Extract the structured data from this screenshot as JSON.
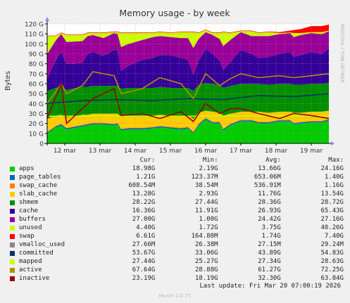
{
  "chart_data": {
    "type": "area",
    "title": "Memory usage - by week",
    "ylabel": "Bytes",
    "side_label": "RRDTOOL / TOBI OETIKER",
    "ylim": [
      0,
      120
    ],
    "yticks": [
      0,
      10,
      20,
      30,
      40,
      50,
      60,
      70,
      80,
      90,
      100,
      110,
      120
    ],
    "ytick_labels": [
      "0",
      "10 G",
      "20 G",
      "30 G",
      "40 G",
      "50 G",
      "60 G",
      "70 G",
      "80 G",
      "90 G",
      "100 G",
      "110 G",
      "120 G"
    ],
    "xlim": [
      0,
      8
    ],
    "x_labels": [
      "12 mar",
      "13 mar",
      "14 mar",
      "15 mar",
      "16 mar",
      "17 mar",
      "18 mar",
      "19 mar"
    ],
    "grid": true,
    "stacked_series": [
      {
        "name": "apps",
        "color": "#00cc00"
      },
      {
        "name": "page_tables",
        "color": "#0066b3"
      },
      {
        "name": "swap_cache",
        "color": "#ff8000"
      },
      {
        "name": "slab_cache",
        "color": "#ffcc00"
      },
      {
        "name": "shmem",
        "color": "#008f00"
      },
      {
        "name": "cache",
        "color": "#330099"
      },
      {
        "name": "buffers",
        "color": "#990099"
      },
      {
        "name": "unused",
        "color": "#ccff00"
      },
      {
        "name": "swap",
        "color": "#ff0000"
      }
    ],
    "stack_profile_x": [
      0,
      0.25,
      0.4,
      0.55,
      1.0,
      1.15,
      1.3,
      1.6,
      1.9,
      2.0,
      2.1,
      2.3,
      2.7,
      3.0,
      3.2,
      3.5,
      3.8,
      4.0,
      4.15,
      4.3,
      4.5,
      4.7,
      4.9,
      5.0,
      5.2,
      5.5,
      5.8,
      6.0,
      6.3,
      6.6,
      6.9,
      7.0,
      7.2,
      7.5,
      7.8,
      8.0
    ],
    "stack_profile": {
      "apps": [
        10,
        16,
        18,
        14,
        17,
        18,
        19,
        19,
        18,
        19,
        13,
        14,
        14,
        15,
        16,
        15,
        14,
        15,
        10,
        18,
        24,
        20,
        20,
        13,
        18,
        22,
        22,
        20,
        20,
        22,
        22,
        19,
        20,
        21,
        21,
        23
      ],
      "page_tables": [
        1.2,
        1.2,
        1.2,
        1.2,
        1.2,
        1.2,
        1.2,
        1.2,
        1.2,
        1.2,
        1.2,
        1.2,
        1.2,
        1.2,
        1.2,
        1.2,
        1.2,
        1.2,
        1.2,
        1.2,
        1.2,
        1.2,
        1.2,
        1.2,
        1.2,
        1.2,
        1.2,
        1.2,
        1.2,
        1.2,
        1.2,
        1.2,
        1.2,
        1.2,
        1.2,
        1.2
      ],
      "swap_cache": [
        0.5,
        0.6,
        0.6,
        0.6,
        0.6,
        0.6,
        0.6,
        0.6,
        0.6,
        0.6,
        0.6,
        0.6,
        0.6,
        0.6,
        0.6,
        0.6,
        0.6,
        0.6,
        0.6,
        0.6,
        0.6,
        0.6,
        0.6,
        0.6,
        0.6,
        0.6,
        0.6,
        0.6,
        0.6,
        0.6,
        0.6,
        0.6,
        0.6,
        0.6,
        0.6,
        0.6
      ],
      "slab_cache": [
        13,
        10,
        9,
        10,
        10,
        9,
        9,
        9,
        10,
        9,
        12,
        12,
        12,
        11,
        11,
        11,
        12,
        11,
        13,
        11,
        7,
        10,
        9,
        13,
        10,
        8,
        8,
        10,
        9,
        8,
        8,
        10,
        9,
        9,
        9,
        8
      ],
      "shmem": [
        28,
        28,
        28,
        28,
        28,
        28,
        28,
        28,
        28,
        28,
        28,
        28,
        28,
        28,
        28,
        28,
        28,
        28,
        28,
        28,
        28,
        28,
        28,
        28,
        28,
        28,
        28,
        28,
        28,
        28,
        28,
        28,
        28,
        28,
        28,
        28
      ],
      "cache": [
        12,
        28,
        35,
        26,
        24,
        33,
        34,
        30,
        36,
        36,
        18,
        22,
        28,
        30,
        32,
        33,
        30,
        28,
        16,
        24,
        34,
        30,
        24,
        18,
        24,
        34,
        30,
        26,
        28,
        30,
        32,
        28,
        30,
        32,
        30,
        34
      ],
      "buffers": [
        25,
        20,
        18,
        22,
        22,
        18,
        17,
        18,
        17,
        16,
        24,
        22,
        20,
        21,
        19,
        18,
        20,
        22,
        27,
        22,
        17,
        19,
        22,
        24,
        22,
        18,
        18,
        22,
        21,
        20,
        19,
        20,
        20,
        19,
        20,
        18
      ],
      "unused": [
        18,
        4,
        1,
        7,
        6,
        3,
        2,
        5,
        1,
        2,
        14,
        11,
        7,
        4,
        4,
        4,
        6,
        6,
        16,
        6,
        2,
        2,
        6,
        14,
        7,
        1,
        5,
        3,
        4,
        1,
        0.5,
        4,
        2,
        1,
        2,
        0.5
      ],
      "swap": [
        0.5,
        0.5,
        0.5,
        0.5,
        0.5,
        0.5,
        0.5,
        0.5,
        0.5,
        0.5,
        0.5,
        0.5,
        0.5,
        0.5,
        0.5,
        0.5,
        0.5,
        0.5,
        0.5,
        0.5,
        0.5,
        0.5,
        0.5,
        0.5,
        0.5,
        0.5,
        0.5,
        0.5,
        0.5,
        1,
        2,
        3,
        4,
        6,
        6,
        6
      ]
    },
    "line_series": [
      {
        "name": "vmalloc_used",
        "color": "#888888",
        "x": [
          0,
          8
        ],
        "y": [
          27.2,
          27.2
        ]
      },
      {
        "name": "committed",
        "color": "#003366",
        "x": [
          0,
          1,
          2,
          3,
          4,
          5,
          6,
          7,
          8
        ],
        "y": [
          40,
          43,
          44,
          43,
          45,
          44,
          48,
          47,
          50
        ]
      },
      {
        "name": "mapped",
        "color": "#ccff00",
        "x": [
          0,
          8
        ],
        "y": [
          27.3,
          27.3
        ]
      },
      {
        "name": "active",
        "color": "#b38f00",
        "x": [
          0,
          0.4,
          0.55,
          1.0,
          1.3,
          1.9,
          2.1,
          2.7,
          3.2,
          3.8,
          4.15,
          4.5,
          4.9,
          5.2,
          5.5,
          6.0,
          6.6,
          7.0,
          7.5,
          8.0
        ],
        "y": [
          40,
          60,
          50,
          58,
          72,
          68,
          50,
          55,
          66,
          60,
          45,
          70,
          58,
          65,
          70,
          66,
          68,
          66,
          68,
          70
        ]
      },
      {
        "name": "inactive",
        "color": "#990000",
        "x": [
          0,
          0.4,
          0.55,
          1.0,
          1.3,
          1.9,
          2.1,
          2.7,
          3.2,
          3.8,
          4.15,
          4.5,
          4.9,
          5.2,
          5.5,
          6.0,
          6.6,
          7.0,
          7.5,
          8.0
        ],
        "y": [
          25,
          60,
          20,
          35,
          45,
          55,
          28,
          30,
          25,
          32,
          22,
          40,
          30,
          35,
          35,
          30,
          25,
          30,
          28,
          25
        ]
      }
    ]
  },
  "legend": {
    "headers": [
      "Cur:",
      "Min:",
      "Avg:",
      "Max:"
    ],
    "rows": [
      {
        "name": "apps",
        "color": "#00cc00",
        "cur": "18.98G",
        "min": "2.19G",
        "avg": "13.66G",
        "max": "24.16G"
      },
      {
        "name": "page_tables",
        "color": "#0066b3",
        "cur": "1.21G",
        "min": "123.37M",
        "avg": "653.06M",
        "max": "1.40G"
      },
      {
        "name": "swap_cache",
        "color": "#ff8000",
        "cur": "608.54M",
        "min": "38.54M",
        "avg": "536.91M",
        "max": "1.16G"
      },
      {
        "name": "slab_cache",
        "color": "#ffcc00",
        "cur": "13.28G",
        "min": "2.93G",
        "avg": "11.76G",
        "max": "13.54G"
      },
      {
        "name": "shmem",
        "color": "#008f00",
        "cur": "28.22G",
        "min": "27.44G",
        "avg": "28.36G",
        "max": "28.72G"
      },
      {
        "name": "cache",
        "color": "#330099",
        "cur": "16.36G",
        "min": "11.91G",
        "avg": "26.93G",
        "max": "65.43G"
      },
      {
        "name": "buffers",
        "color": "#990099",
        "cur": "27.00G",
        "min": "1.00G",
        "avg": "24.42G",
        "max": "27.16G"
      },
      {
        "name": "unused",
        "color": "#ccff00",
        "cur": "4.40G",
        "min": "1.72G",
        "avg": "3.75G",
        "max": "40.26G"
      },
      {
        "name": "swap",
        "color": "#ff0000",
        "cur": "6.61G",
        "min": "164.80M",
        "avg": "1.74G",
        "max": "7.40G"
      },
      {
        "name": "vmalloc_used",
        "color": "#888888",
        "cur": "27.66M",
        "min": "26.38M",
        "avg": "27.15M",
        "max": "29.24M"
      },
      {
        "name": "committed",
        "color": "#003366",
        "cur": "53.67G",
        "min": "33.06G",
        "avg": "43.89G",
        "max": "54.83G"
      },
      {
        "name": "mapped",
        "color": "#ccff00",
        "cur": "27.44G",
        "min": "25.27G",
        "avg": "27.34G",
        "max": "28.63G"
      },
      {
        "name": "active",
        "color": "#b38f00",
        "cur": "67.64G",
        "min": "28.88G",
        "avg": "61.27G",
        "max": "72.25G"
      },
      {
        "name": "inactive",
        "color": "#990000",
        "cur": "23.19G",
        "min": "18.19G",
        "avg": "32.30G",
        "max": "63.84G"
      }
    ]
  },
  "footer": {
    "last_update": "Last update: Fri Mar 20 07:00:19 2026",
    "version": "Munin 2.0.75"
  }
}
